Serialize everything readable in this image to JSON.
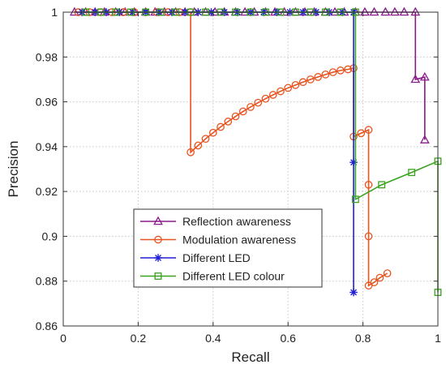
{
  "chart_data": {
    "type": "line",
    "xlabel": "Recall",
    "ylabel": "Precision",
    "xlim": [
      0,
      1
    ],
    "ylim": [
      0.86,
      1.0
    ],
    "xticks": [
      0,
      0.2,
      0.4,
      0.6,
      0.8,
      1
    ],
    "yticks": [
      0.86,
      0.88,
      0.9,
      0.92,
      0.94,
      0.96,
      0.98,
      1
    ],
    "xtick_labels": [
      "0",
      "0.2",
      "0.4",
      "0.6",
      "0.8",
      "1"
    ],
    "ytick_labels": [
      "0.86",
      "0.88",
      "0.9",
      "0.92",
      "0.94",
      "0.96",
      "0.98",
      "1"
    ],
    "grid": true,
    "legend_position": "bottom-center",
    "series": [
      {
        "name": "Reflection awareness",
        "color": "#8b1a8b",
        "marker": "triangle",
        "points": [
          [
            0.03,
            1
          ],
          [
            0.06,
            1
          ],
          [
            0.085,
            1
          ],
          [
            0.11,
            1
          ],
          [
            0.14,
            1
          ],
          [
            0.165,
            1
          ],
          [
            0.19,
            1
          ],
          [
            0.22,
            1
          ],
          [
            0.245,
            1
          ],
          [
            0.27,
            1
          ],
          [
            0.3,
            1
          ],
          [
            0.325,
            1
          ],
          [
            0.35,
            1
          ],
          [
            0.38,
            1
          ],
          [
            0.405,
            1
          ],
          [
            0.43,
            1
          ],
          [
            0.46,
            1
          ],
          [
            0.485,
            1
          ],
          [
            0.51,
            1
          ],
          [
            0.54,
            1
          ],
          [
            0.565,
            1
          ],
          [
            0.59,
            1
          ],
          [
            0.62,
            1
          ],
          [
            0.645,
            1
          ],
          [
            0.67,
            1
          ],
          [
            0.7,
            1
          ],
          [
            0.725,
            1
          ],
          [
            0.75,
            1
          ],
          [
            0.78,
            1
          ],
          [
            0.805,
            1
          ],
          [
            0.83,
            1
          ],
          [
            0.86,
            1
          ],
          [
            0.885,
            1
          ],
          [
            0.91,
            1
          ],
          [
            0.94,
            1
          ],
          [
            0.94,
            0.97
          ],
          [
            0.965,
            0.971
          ],
          [
            0.965,
            0.943
          ]
        ]
      },
      {
        "name": "Modulation awareness",
        "color": "#e8531f",
        "marker": "circle",
        "points": [
          [
            0.04,
            1
          ],
          [
            0.07,
            1
          ],
          [
            0.1,
            1
          ],
          [
            0.13,
            1
          ],
          [
            0.16,
            1
          ],
          [
            0.19,
            1
          ],
          [
            0.22,
            1
          ],
          [
            0.25,
            1
          ],
          [
            0.28,
            1
          ],
          [
            0.31,
            1
          ],
          [
            0.34,
            1
          ],
          [
            0.34,
            0.9375
          ],
          [
            0.36,
            0.9405
          ],
          [
            0.38,
            0.9435
          ],
          [
            0.4,
            0.9462
          ],
          [
            0.42,
            0.9488
          ],
          [
            0.44,
            0.9512
          ],
          [
            0.46,
            0.9535
          ],
          [
            0.48,
            0.9557
          ],
          [
            0.5,
            0.9577
          ],
          [
            0.52,
            0.9596
          ],
          [
            0.54,
            0.9614
          ],
          [
            0.56,
            0.9631
          ],
          [
            0.58,
            0.9647
          ],
          [
            0.6,
            0.9662
          ],
          [
            0.62,
            0.9675
          ],
          [
            0.64,
            0.9688
          ],
          [
            0.66,
            0.97
          ],
          [
            0.68,
            0.9711
          ],
          [
            0.7,
            0.9722
          ],
          [
            0.72,
            0.9732
          ],
          [
            0.74,
            0.974
          ],
          [
            0.76,
            0.9745
          ],
          [
            0.775,
            0.975
          ],
          [
            0.775,
            0.9445
          ],
          [
            0.795,
            0.946
          ],
          [
            0.815,
            0.9475
          ],
          [
            0.815,
            0.923
          ],
          [
            0.815,
            0.9
          ],
          [
            0.815,
            0.878
          ],
          [
            0.83,
            0.8795
          ],
          [
            0.845,
            0.8815
          ],
          [
            0.865,
            0.8835
          ]
        ]
      },
      {
        "name": "Different LED",
        "color": "#1f1fd6",
        "marker": "star",
        "points": [
          [
            0.05,
            1
          ],
          [
            0.085,
            1
          ],
          [
            0.115,
            1
          ],
          [
            0.15,
            1
          ],
          [
            0.185,
            1
          ],
          [
            0.22,
            1
          ],
          [
            0.255,
            1
          ],
          [
            0.29,
            1
          ],
          [
            0.325,
            1
          ],
          [
            0.36,
            1
          ],
          [
            0.395,
            1
          ],
          [
            0.43,
            1
          ],
          [
            0.465,
            1
          ],
          [
            0.5,
            1
          ],
          [
            0.535,
            1
          ],
          [
            0.57,
            1
          ],
          [
            0.605,
            1
          ],
          [
            0.64,
            1
          ],
          [
            0.675,
            1
          ],
          [
            0.71,
            1
          ],
          [
            0.745,
            1
          ],
          [
            0.775,
            1
          ],
          [
            0.775,
            0.933
          ],
          [
            0.775,
            0.875
          ]
        ]
      },
      {
        "name": "Different LED colour",
        "color": "#3aa21f",
        "marker": "square",
        "points": [
          [
            0.06,
            1
          ],
          [
            0.1,
            1
          ],
          [
            0.14,
            1
          ],
          [
            0.18,
            1
          ],
          [
            0.22,
            1
          ],
          [
            0.26,
            1
          ],
          [
            0.3,
            1
          ],
          [
            0.34,
            1
          ],
          [
            0.38,
            1
          ],
          [
            0.42,
            1
          ],
          [
            0.46,
            1
          ],
          [
            0.5,
            1
          ],
          [
            0.54,
            1
          ],
          [
            0.58,
            1
          ],
          [
            0.62,
            1
          ],
          [
            0.66,
            1
          ],
          [
            0.7,
            1
          ],
          [
            0.74,
            1
          ],
          [
            0.78,
            1
          ],
          [
            0.78,
            0.9165
          ],
          [
            0.85,
            0.923
          ],
          [
            0.93,
            0.9285
          ],
          [
            1.0,
            0.9335
          ],
          [
            1.0,
            0.875
          ]
        ]
      }
    ]
  }
}
